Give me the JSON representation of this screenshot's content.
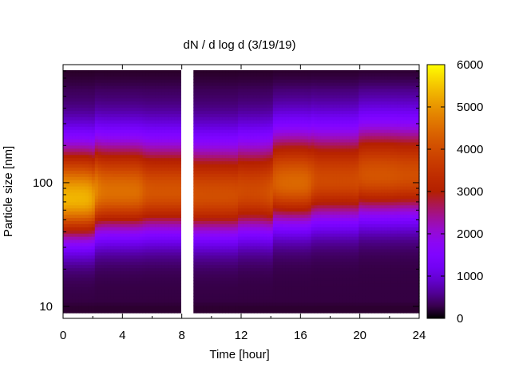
{
  "chart_data": {
    "type": "heatmap",
    "title": "dN / d log d (3/19/19)",
    "xlabel": "Time [hour]",
    "ylabel": "Particle size [nm]",
    "xlim": [
      0,
      24
    ],
    "ylim": [
      8,
      900
    ],
    "y_scale": "log",
    "x_ticks": [
      0,
      4,
      8,
      12,
      16,
      20,
      24
    ],
    "x_tick_labels": [
      "0",
      "4",
      "8",
      "12",
      "16",
      "20",
      "24"
    ],
    "y_ticks": [
      10,
      100
    ],
    "y_tick_labels": [
      "10",
      "100"
    ],
    "colorbar": {
      "range": [
        0,
        6000
      ],
      "ticks": [
        0,
        1000,
        2000,
        3000,
        4000,
        5000,
        6000
      ],
      "tick_labels": [
        "0",
        "1000",
        "2000",
        "3000",
        "4000",
        "5000",
        "6000"
      ],
      "palette": "black-purple-blue-magenta-red-orange-yellow"
    },
    "data_gap": {
      "start_hour": 8.0,
      "end_hour": 8.7
    },
    "time_blobs": [
      {
        "center_hour": 0.8,
        "peak_size_nm": 75,
        "peak_value": 5100
      },
      {
        "center_hour": 3.5,
        "peak_size_nm": 85,
        "peak_value": 4300
      },
      {
        "center_hour": 7.2,
        "peak_size_nm": 85,
        "peak_value": 3900
      },
      {
        "center_hour": 10.4,
        "peak_size_nm": 80,
        "peak_value": 3800
      },
      {
        "center_hour": 13.2,
        "peak_size_nm": 85,
        "peak_value": 3700
      },
      {
        "center_hour": 15.0,
        "peak_size_nm": 100,
        "peak_value": 4200
      },
      {
        "center_hour": 18.5,
        "peak_size_nm": 105,
        "peak_value": 3700
      },
      {
        "center_hour": 21.5,
        "peak_size_nm": 115,
        "peak_value": 3900
      },
      {
        "center_hour": 23.5,
        "peak_size_nm": 115,
        "peak_value": 3800
      }
    ]
  }
}
